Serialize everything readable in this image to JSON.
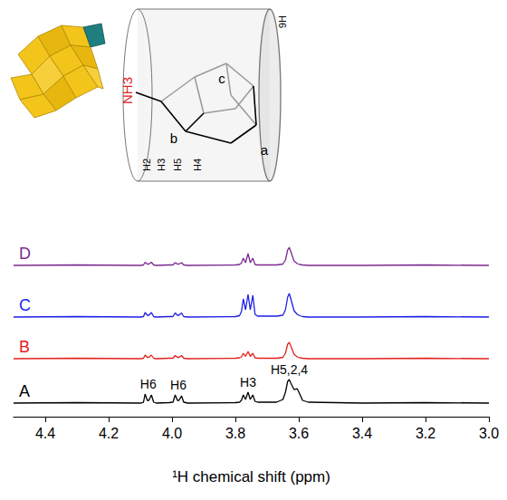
{
  "chart_data": {
    "type": "line",
    "x_label": "¹H chemical shift (ppm)",
    "x": [
      4.5,
      4.3,
      4.1,
      4.09,
      4.085,
      4.078,
      4.073,
      4.065,
      4.058,
      4.05,
      4.01,
      3.997,
      3.99,
      3.983,
      3.978,
      3.97,
      3.963,
      3.95,
      3.8,
      3.787,
      3.781,
      3.775,
      3.768,
      3.76,
      3.753,
      3.745,
      3.738,
      3.73,
      3.67,
      3.65,
      3.642,
      3.635,
      3.63,
      3.625,
      3.615,
      3.605,
      3.597,
      3.588,
      3.57,
      3.4,
      3.2,
      3.0
    ],
    "series": [
      {
        "name": "D",
        "color": "#7b2a8e",
        "values": [
          0,
          0.5,
          0,
          0.5,
          3.5,
          1.5,
          1.5,
          3.5,
          0.5,
          0,
          0.5,
          0.5,
          3,
          1.5,
          1.5,
          3,
          0.5,
          0,
          0.5,
          1,
          2.5,
          8,
          3,
          13,
          3,
          8,
          1,
          0.5,
          0.5,
          1.5,
          6,
          17,
          20,
          15,
          5,
          2,
          1,
          0.5,
          0,
          0,
          0.5,
          0
        ]
      },
      {
        "name": "C",
        "color": "#1f1fe6",
        "values": [
          0,
          0.5,
          0,
          0.5,
          5,
          2,
          2,
          5,
          0.5,
          0,
          0.5,
          0.5,
          4.5,
          2,
          2,
          4.5,
          0.5,
          0,
          0.5,
          1.5,
          6,
          20,
          8,
          25,
          8,
          24,
          3,
          1,
          1,
          2,
          8,
          22,
          26,
          20,
          7,
          3,
          1.5,
          0.5,
          0,
          0,
          0.5,
          0
        ]
      },
      {
        "name": "B",
        "color": "#e4201c",
        "values": [
          0,
          0.5,
          0,
          0.5,
          4,
          1.5,
          1.5,
          4,
          0.5,
          0,
          0.5,
          0.5,
          3.5,
          1.5,
          1.5,
          3.5,
          0.5,
          0,
          0.5,
          1,
          2,
          6,
          2.5,
          8,
          2.5,
          6,
          1,
          0.5,
          0.5,
          1.5,
          6,
          16,
          18,
          14,
          5,
          2,
          1,
          0.5,
          0,
          0,
          0.5,
          0
        ]
      },
      {
        "name": "A",
        "color": "#000000",
        "values": [
          0,
          0.5,
          0,
          1,
          10,
          3,
          3,
          9,
          1,
          0,
          0.5,
          1,
          9,
          3,
          3,
          8,
          1,
          0,
          0.5,
          1,
          3,
          9,
          4,
          12,
          4,
          9,
          2,
          1,
          1,
          4,
          12,
          24,
          26,
          22,
          15,
          16,
          10,
          3,
          1,
          0,
          0.5,
          0
        ],
        "annotations": [
          {
            "text": "H6",
            "x": 4.075
          },
          {
            "text": "H6",
            "x": 3.98
          },
          {
            "text": "H3",
            "x": 3.76
          },
          {
            "text": "H5,2,4",
            "x": 3.63
          }
        ]
      }
    ],
    "xlim": [
      3.0,
      4.5
    ],
    "xticks": [
      4.4,
      4.2,
      {
        "value": 4,
        "label": "4.0"
      },
      3.8,
      3.6,
      3.4,
      3.2,
      {
        "value": 3,
        "label": "3.0"
      }
    ],
    "ylim": [
      -8,
      40
    ],
    "grid": false,
    "tick_labels": "x"
  },
  "inset": {
    "labels": [
      "NH3",
      "a",
      "b",
      "c",
      "H2",
      "H3",
      "H5",
      "H4",
      "H6"
    ]
  }
}
